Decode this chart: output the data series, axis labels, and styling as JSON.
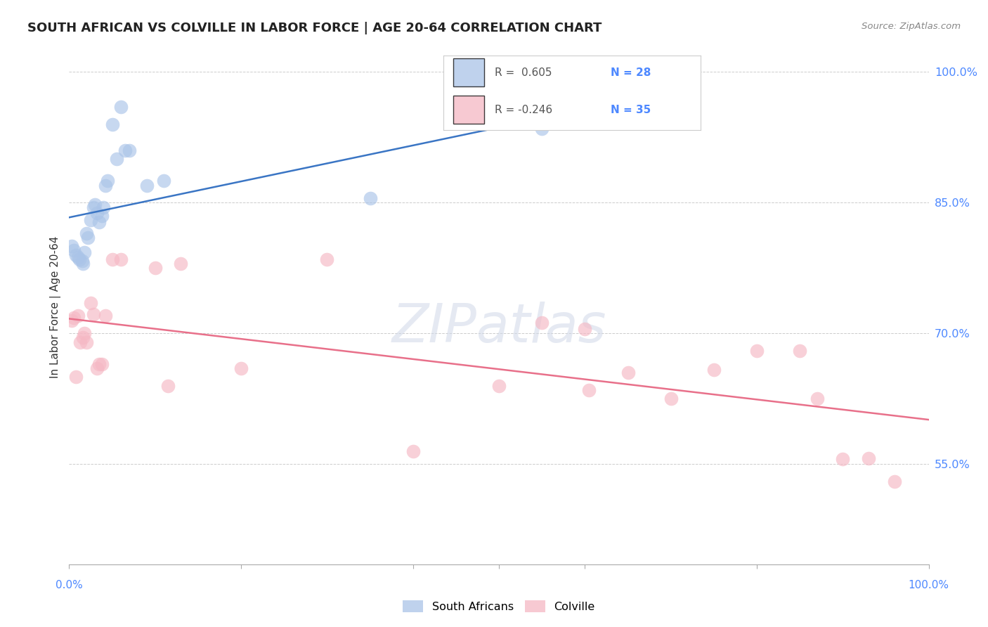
{
  "title": "SOUTH AFRICAN VS COLVILLE IN LABOR FORCE | AGE 20-64 CORRELATION CHART",
  "source": "Source: ZipAtlas.com",
  "ylabel": "In Labor Force | Age 20-64",
  "ytick_values": [
    0.55,
    0.7,
    0.85,
    1.0
  ],
  "ytick_labels": [
    "55.0%",
    "70.0%",
    "85.0%",
    "100.0%"
  ],
  "xlim": [
    0.0,
    1.0
  ],
  "ylim": [
    0.435,
    1.025
  ],
  "legend_label1": "South Africans",
  "legend_label2": "Colville",
  "blue_color": "#aac4e8",
  "pink_color": "#f5b8c4",
  "blue_line_color": "#3a75c4",
  "pink_line_color": "#e8708a",
  "south_african_x": [
    0.003,
    0.005,
    0.008,
    0.01,
    0.012,
    0.015,
    0.016,
    0.018,
    0.02,
    0.022,
    0.025,
    0.028,
    0.03,
    0.032,
    0.035,
    0.038,
    0.04,
    0.042,
    0.045,
    0.05,
    0.055,
    0.06,
    0.065,
    0.07,
    0.09,
    0.11,
    0.35,
    0.55
  ],
  "south_african_y": [
    0.8,
    0.795,
    0.79,
    0.787,
    0.785,
    0.783,
    0.78,
    0.793,
    0.815,
    0.81,
    0.83,
    0.845,
    0.848,
    0.838,
    0.828,
    0.835,
    0.845,
    0.87,
    0.875,
    0.94,
    0.9,
    0.96,
    0.91,
    0.91,
    0.87,
    0.875,
    0.855,
    0.935
  ],
  "colville_x": [
    0.003,
    0.005,
    0.008,
    0.01,
    0.013,
    0.016,
    0.018,
    0.02,
    0.025,
    0.028,
    0.032,
    0.035,
    0.038,
    0.042,
    0.05,
    0.06,
    0.1,
    0.115,
    0.13,
    0.2,
    0.3,
    0.4,
    0.5,
    0.55,
    0.6,
    0.605,
    0.65,
    0.7,
    0.75,
    0.8,
    0.85,
    0.87,
    0.9,
    0.93,
    0.96
  ],
  "colville_y": [
    0.715,
    0.718,
    0.65,
    0.72,
    0.69,
    0.695,
    0.7,
    0.69,
    0.735,
    0.722,
    0.66,
    0.665,
    0.665,
    0.72,
    0.785,
    0.785,
    0.775,
    0.64,
    0.78,
    0.66,
    0.785,
    0.565,
    0.64,
    0.712,
    0.705,
    0.635,
    0.655,
    0.625,
    0.658,
    0.68,
    0.68,
    0.625,
    0.556,
    0.557,
    0.53
  ]
}
